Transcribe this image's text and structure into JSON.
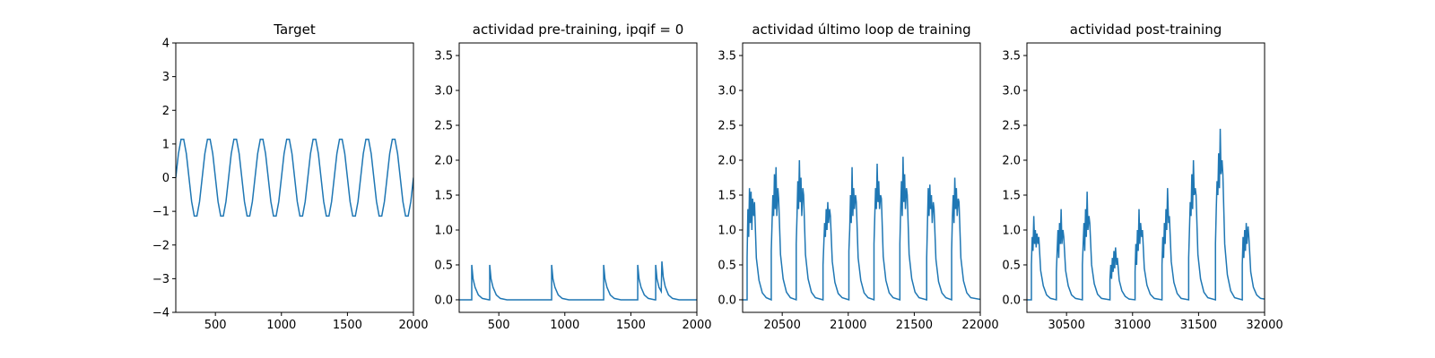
{
  "chart_data": [
    {
      "type": "line",
      "title": "Target",
      "color": "#1f77b4",
      "xlim": [
        200,
        2000
      ],
      "ylim": [
        -4,
        4
      ],
      "xticks": [
        500,
        1000,
        1500,
        2000
      ],
      "yticks": [
        {
          "value": -4,
          "label": "−4"
        },
        {
          "value": -3,
          "label": "−3"
        },
        {
          "value": -2,
          "label": "−2"
        },
        {
          "value": -1,
          "label": "−1"
        },
        0,
        1,
        2,
        3,
        4
      ],
      "x": [
        200,
        220,
        240,
        260,
        280,
        300,
        320,
        340,
        360,
        380,
        400,
        420,
        440,
        460,
        480,
        500,
        520,
        540,
        560,
        580,
        600,
        620,
        640,
        660,
        680,
        700,
        720,
        740,
        760,
        780,
        800,
        820,
        840,
        860,
        880,
        900,
        920,
        940,
        960,
        980,
        1000,
        1020,
        1040,
        1060,
        1080,
        1100,
        1120,
        1140,
        1160,
        1180,
        1200,
        1220,
        1240,
        1260,
        1280,
        1300,
        1320,
        1340,
        1360,
        1380,
        1400,
        1420,
        1440,
        1460,
        1480,
        1500,
        1520,
        1540,
        1560,
        1580,
        1600,
        1620,
        1640,
        1660,
        1680,
        1700,
        1720,
        1740,
        1760,
        1780,
        1800,
        1820,
        1840,
        1860,
        1880,
        1900,
        1920,
        1940,
        1960,
        1980,
        2000
      ],
      "values": [
        0,
        0.71,
        1.14,
        1.14,
        0.71,
        0,
        -0.71,
        -1.14,
        -1.14,
        -0.71,
        0,
        0.71,
        1.14,
        1.14,
        0.71,
        0,
        -0.71,
        -1.14,
        -1.14,
        -0.71,
        0,
        0.71,
        1.14,
        1.14,
        0.71,
        0,
        -0.71,
        -1.14,
        -1.14,
        -0.71,
        0,
        0.71,
        1.14,
        1.14,
        0.71,
        0,
        -0.71,
        -1.14,
        -1.14,
        -0.71,
        0,
        0.71,
        1.14,
        1.14,
        0.71,
        0,
        -0.71,
        -1.14,
        -1.14,
        -0.71,
        0,
        0.71,
        1.14,
        1.14,
        0.71,
        0,
        -0.71,
        -1.14,
        -1.14,
        -0.71,
        0,
        0.71,
        1.14,
        1.14,
        0.71,
        0,
        -0.71,
        -1.14,
        -1.14,
        -0.71,
        0,
        0.71,
        1.14,
        1.14,
        0.71,
        0,
        -0.71,
        -1.14,
        -1.14,
        -0.71,
        0,
        0.71,
        1.14,
        1.14,
        0.71,
        0,
        -0.71,
        -1.14,
        -1.14,
        -0.71,
        0
      ]
    },
    {
      "type": "line",
      "title": "actividad pre-training, ipqif = 0",
      "color": "#1f77b4",
      "xlim": [
        200,
        2000
      ],
      "ylim": [
        -0.18,
        3.68
      ],
      "xticks": [
        500,
        1000,
        1500,
        2000
      ],
      "yticks": [
        {
          "value": 0,
          "label": "0.0"
        },
        0.5,
        {
          "value": 1,
          "label": "1.0"
        },
        1.5,
        {
          "value": 2,
          "label": "2.0"
        },
        2.5,
        {
          "value": 3,
          "label": "3.0"
        },
        3.5
      ],
      "x": [
        200,
        295,
        295,
        305,
        320,
        345,
        375,
        425,
        431,
        431,
        441,
        456,
        481,
        511,
        561,
        900,
        900,
        910,
        925,
        950,
        980,
        1030,
        1294,
        1294,
        1304,
        1319,
        1344,
        1374,
        1424,
        1552,
        1552,
        1562,
        1577,
        1602,
        1632,
        1682,
        1688,
        1688,
        1698,
        1713,
        1730,
        1735,
        1745,
        1760,
        1785,
        1815,
        1865,
        2000
      ],
      "values": [
        0,
        0,
        0.5,
        0.3,
        0.18,
        0.07,
        0.02,
        0,
        0,
        0.5,
        0.3,
        0.18,
        0.07,
        0.02,
        0,
        0,
        0.5,
        0.3,
        0.18,
        0.07,
        0.02,
        0,
        0,
        0.5,
        0.3,
        0.18,
        0.07,
        0.02,
        0,
        0,
        0.5,
        0.3,
        0.18,
        0.07,
        0.02,
        0,
        0,
        0.5,
        0.3,
        0.18,
        0.12,
        0.55,
        0.33,
        0.19,
        0.07,
        0.02,
        0,
        0
      ]
    },
    {
      "type": "line",
      "title": "actividad último loop de training",
      "color": "#1f77b4",
      "xlim": [
        20200,
        22000
      ],
      "ylim": [
        -0.18,
        3.68
      ],
      "xticks": [
        20500,
        21000,
        21500,
        22000
      ],
      "yticks": [
        {
          "value": 0,
          "label": "0.0"
        },
        0.5,
        {
          "value": 1,
          "label": "1.0"
        },
        1.5,
        {
          "value": 2,
          "label": "2.0"
        },
        2.5,
        {
          "value": 3,
          "label": "3.0"
        },
        3.5
      ],
      "x": [
        20200,
        20234,
        20234,
        20240,
        20246,
        20252,
        20258,
        20264,
        20270,
        20276,
        20284,
        20290,
        20304,
        20324,
        20349,
        20379,
        20417,
        20417,
        20423,
        20429,
        20435,
        20441,
        20447,
        20453,
        20459,
        20467,
        20473,
        20487,
        20507,
        20532,
        20562,
        20606,
        20606,
        20612,
        20618,
        20624,
        20630,
        20636,
        20642,
        20648,
        20656,
        20662,
        20676,
        20696,
        20721,
        20751,
        20809,
        20809,
        20815,
        20821,
        20827,
        20833,
        20839,
        20845,
        20851,
        20859,
        20865,
        20879,
        20899,
        20924,
        20954,
        21005,
        21005,
        21011,
        21017,
        21023,
        21029,
        21035,
        21041,
        21047,
        21055,
        21061,
        21075,
        21095,
        21120,
        21150,
        21195,
        21195,
        21201,
        21207,
        21213,
        21219,
        21225,
        21231,
        21237,
        21245,
        21251,
        21265,
        21285,
        21310,
        21340,
        21391,
        21391,
        21397,
        21403,
        21409,
        21415,
        21421,
        21427,
        21433,
        21441,
        21447,
        21461,
        21481,
        21506,
        21536,
        21594,
        21594,
        21600,
        21606,
        21612,
        21618,
        21624,
        21630,
        21636,
        21644,
        21650,
        21664,
        21684,
        21709,
        21739,
        21783,
        21783,
        21789,
        21795,
        21801,
        21807,
        21813,
        21819,
        21825,
        21833,
        21839,
        21853,
        21873,
        21898,
        21928,
        22000
      ],
      "values": [
        0,
        0,
        0.6,
        1.3,
        0.9,
        1.6,
        1.1,
        1.55,
        1.0,
        1.45,
        1.2,
        1.4,
        0.6,
        0.28,
        0.1,
        0.03,
        0,
        0.7,
        1.1,
        1.5,
        1.2,
        1.8,
        1.3,
        1.9,
        1.2,
        1.6,
        1.45,
        0.65,
        0.3,
        0.11,
        0.03,
        0,
        0.8,
        1.2,
        1.7,
        1.3,
        2.0,
        1.4,
        1.75,
        1.2,
        1.6,
        1.5,
        0.65,
        0.3,
        0.11,
        0.03,
        0,
        0.5,
        0.8,
        1.1,
        0.9,
        1.3,
        1.0,
        1.4,
        1.1,
        1.3,
        1.2,
        0.55,
        0.25,
        0.09,
        0.03,
        0,
        0.7,
        1.0,
        1.5,
        1.1,
        1.9,
        1.2,
        1.6,
        1.3,
        1.5,
        1.4,
        0.6,
        0.28,
        0.1,
        0.03,
        0,
        0.8,
        1.2,
        1.6,
        1.3,
        1.95,
        1.4,
        1.7,
        1.3,
        1.5,
        1.45,
        0.62,
        0.28,
        0.1,
        0.03,
        0,
        0.8,
        1.3,
        1.7,
        1.2,
        2.05,
        1.4,
        1.8,
        1.3,
        1.6,
        1.5,
        0.65,
        0.3,
        0.11,
        0.03,
        0,
        0.6,
        1.1,
        1.6,
        1.2,
        1.65,
        1.3,
        1.5,
        1.1,
        1.4,
        1.3,
        0.58,
        0.26,
        0.1,
        0.03,
        0,
        0.7,
        1.2,
        1.5,
        1.1,
        1.75,
        1.3,
        1.6,
        1.2,
        1.45,
        1.4,
        0.6,
        0.27,
        0.1,
        0.03,
        0.005
      ]
    },
    {
      "type": "line",
      "title": "actividad post-training",
      "color": "#1f77b4",
      "xlim": [
        30200,
        32000
      ],
      "ylim": [
        -0.18,
        3.68
      ],
      "xticks": [
        30500,
        31000,
        31500,
        32000
      ],
      "yticks": [
        {
          "value": 0,
          "label": "0.0"
        },
        0.5,
        {
          "value": 1,
          "label": "1.0"
        },
        1.5,
        {
          "value": 2,
          "label": "2.0"
        },
        2.5,
        {
          "value": 3,
          "label": "3.0"
        },
        3.5
      ],
      "x": [
        30200,
        30234,
        30234,
        30240,
        30246,
        30252,
        30258,
        30264,
        30270,
        30276,
        30284,
        30290,
        30304,
        30324,
        30349,
        30379,
        30423,
        30423,
        30429,
        30435,
        30441,
        30447,
        30453,
        30459,
        30465,
        30473,
        30479,
        30493,
        30513,
        30538,
        30568,
        30620,
        30620,
        30626,
        30632,
        30638,
        30644,
        30650,
        30656,
        30662,
        30670,
        30676,
        30690,
        30710,
        30735,
        30765,
        30829,
        30829,
        30835,
        30841,
        30847,
        30853,
        30859,
        30865,
        30871,
        30879,
        30885,
        30899,
        30919,
        30944,
        30974,
        31019,
        31019,
        31025,
        31031,
        31037,
        31043,
        31049,
        31055,
        31061,
        31069,
        31075,
        31089,
        31109,
        31134,
        31164,
        31223,
        31223,
        31229,
        31235,
        31241,
        31247,
        31253,
        31259,
        31265,
        31273,
        31279,
        31293,
        31313,
        31338,
        31368,
        31425,
        31425,
        31431,
        31437,
        31443,
        31449,
        31455,
        31461,
        31467,
        31475,
        31481,
        31495,
        31515,
        31540,
        31570,
        31628,
        31628,
        31634,
        31640,
        31646,
        31652,
        31658,
        31664,
        31670,
        31678,
        31684,
        31698,
        31718,
        31743,
        31773,
        31831,
        31831,
        31837,
        31843,
        31849,
        31855,
        31861,
        31867,
        31875,
        31881,
        31895,
        31915,
        31940,
        31970,
        32000
      ],
      "values": [
        0,
        0,
        0.5,
        0.9,
        0.7,
        1.2,
        0.8,
        1.0,
        0.75,
        0.95,
        0.8,
        0.9,
        0.42,
        0.2,
        0.07,
        0.02,
        0,
        0.4,
        0.7,
        1.0,
        0.6,
        1.1,
        0.8,
        1.3,
        0.8,
        1.0,
        0.9,
        0.42,
        0.2,
        0.07,
        0.02,
        0,
        0.5,
        0.8,
        1.1,
        0.7,
        1.3,
        0.9,
        1.55,
        1.0,
        1.2,
        1.1,
        0.5,
        0.23,
        0.08,
        0.02,
        0,
        0.3,
        0.5,
        0.3,
        0.6,
        0.4,
        0.7,
        0.45,
        0.75,
        0.5,
        0.6,
        0.28,
        0.13,
        0.05,
        0.01,
        0,
        0.4,
        0.8,
        0.5,
        1.0,
        0.7,
        1.3,
        0.8,
        1.1,
        0.9,
        1.0,
        0.45,
        0.21,
        0.08,
        0.02,
        0,
        0.5,
        0.9,
        0.6,
        1.1,
        0.8,
        1.3,
        1.0,
        1.6,
        1.1,
        1.2,
        0.55,
        0.25,
        0.09,
        0.02,
        0,
        0.6,
        1.0,
        1.4,
        1.2,
        1.8,
        1.3,
        2.0,
        1.5,
        1.6,
        1.5,
        0.65,
        0.3,
        0.11,
        0.03,
        0,
        0.8,
        1.3,
        1.7,
        1.5,
        2.1,
        1.6,
        2.45,
        1.8,
        2.0,
        1.8,
        0.8,
        0.36,
        0.13,
        0.03,
        0,
        0.5,
        0.9,
        0.6,
        1.0,
        0.7,
        1.1,
        0.8,
        1.05,
        0.9,
        0.4,
        0.18,
        0.07,
        0.02,
        0.01
      ]
    }
  ]
}
